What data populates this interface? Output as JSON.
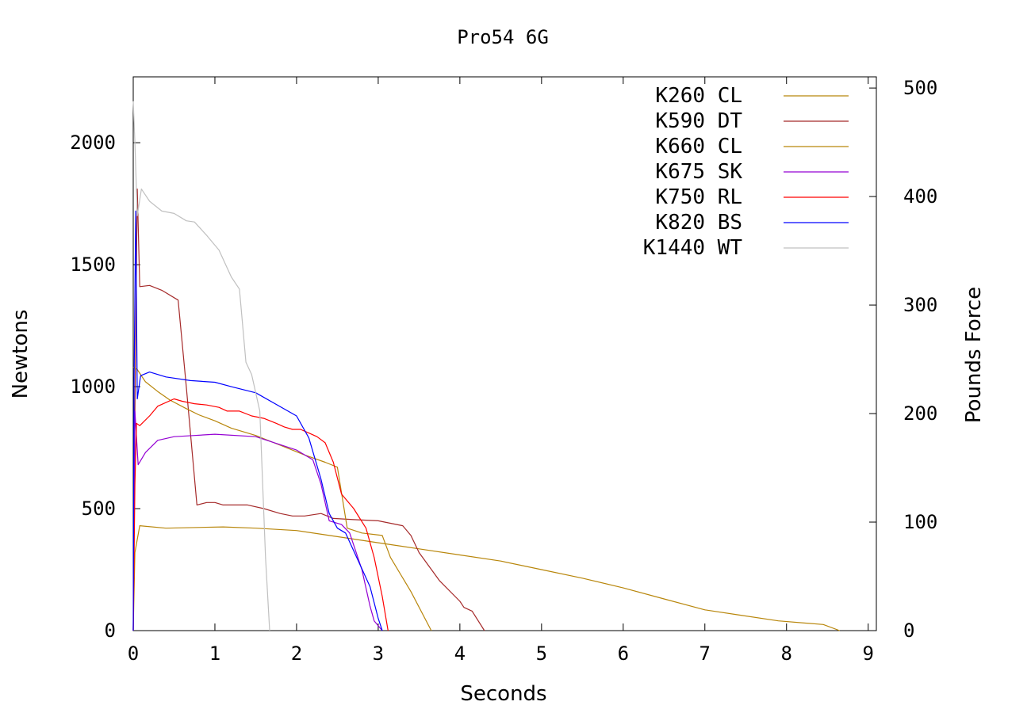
{
  "chart_data": {
    "type": "line",
    "title": "Pro54 6G",
    "xlabel": "Seconds",
    "ylabel": "Newtons",
    "y2label": "Pounds Force",
    "xlim": [
      0,
      9.1
    ],
    "ylim": [
      0,
      2270
    ],
    "y2lim": [
      0,
      510.3
    ],
    "xticks": [
      "0",
      "1",
      "2",
      "3",
      "4",
      "5",
      "6",
      "7",
      "8",
      "9"
    ],
    "yticks": [
      "0",
      "500",
      "1000",
      "1500",
      "2000"
    ],
    "y2ticks": [
      "0",
      "100",
      "200",
      "300",
      "400",
      "500"
    ],
    "grid": false,
    "legend_position": "top-right",
    "series": [
      {
        "name": "K260 CL",
        "color": "#b8860b",
        "points": [
          [
            0,
            0
          ],
          [
            0.02,
            320
          ],
          [
            0.08,
            430
          ],
          [
            0.4,
            420
          ],
          [
            1.1,
            425
          ],
          [
            1.5,
            420
          ],
          [
            2.0,
            410
          ],
          [
            2.5,
            385
          ],
          [
            3.0,
            360
          ],
          [
            3.5,
            335
          ],
          [
            4.0,
            310
          ],
          [
            4.5,
            285
          ],
          [
            5.0,
            250
          ],
          [
            5.5,
            215
          ],
          [
            6.0,
            175
          ],
          [
            6.5,
            130
          ],
          [
            7.0,
            85
          ],
          [
            7.4,
            65
          ],
          [
            7.9,
            40
          ],
          [
            8.45,
            25
          ],
          [
            8.65,
            0
          ]
        ]
      },
      {
        "name": "K590 DT",
        "color": "#a52a2a",
        "points": [
          [
            0,
            0
          ],
          [
            0.02,
            900
          ],
          [
            0.05,
            1810
          ],
          [
            0.08,
            1410
          ],
          [
            0.2,
            1415
          ],
          [
            0.35,
            1395
          ],
          [
            0.55,
            1355
          ],
          [
            0.65,
            1000
          ],
          [
            0.78,
            515
          ],
          [
            0.9,
            525
          ],
          [
            1.0,
            525
          ],
          [
            1.1,
            515
          ],
          [
            1.4,
            515
          ],
          [
            1.6,
            500
          ],
          [
            1.8,
            480
          ],
          [
            1.95,
            470
          ],
          [
            2.1,
            470
          ],
          [
            2.3,
            480
          ],
          [
            2.45,
            460
          ],
          [
            2.7,
            455
          ],
          [
            3.0,
            450
          ],
          [
            3.3,
            430
          ],
          [
            3.4,
            390
          ],
          [
            3.5,
            320
          ],
          [
            3.75,
            205
          ],
          [
            4.0,
            120
          ],
          [
            4.05,
            95
          ],
          [
            4.15,
            80
          ],
          [
            4.3,
            0
          ]
        ]
      },
      {
        "name": "K660 CL",
        "color": "#b8860b",
        "points": [
          [
            0.0,
            1080
          ],
          [
            0.05,
            1070
          ],
          [
            0.15,
            1020
          ],
          [
            0.3,
            980
          ],
          [
            0.45,
            945
          ],
          [
            0.65,
            910
          ],
          [
            0.8,
            885
          ],
          [
            1.0,
            860
          ],
          [
            1.2,
            830
          ],
          [
            1.5,
            800
          ],
          [
            1.8,
            760
          ],
          [
            2.1,
            720
          ],
          [
            2.35,
            690
          ],
          [
            2.5,
            670
          ],
          [
            2.62,
            420
          ],
          [
            2.8,
            400
          ],
          [
            3.05,
            390
          ],
          [
            3.15,
            300
          ],
          [
            3.4,
            160
          ],
          [
            3.65,
            0
          ]
        ]
      },
      {
        "name": "K675 SK",
        "color": "#9400d3",
        "points": [
          [
            0,
            0
          ],
          [
            0.02,
            900
          ],
          [
            0.06,
            680
          ],
          [
            0.15,
            730
          ],
          [
            0.3,
            780
          ],
          [
            0.5,
            795
          ],
          [
            0.75,
            800
          ],
          [
            1.0,
            805
          ],
          [
            1.5,
            795
          ],
          [
            2.0,
            740
          ],
          [
            2.2,
            700
          ],
          [
            2.3,
            600
          ],
          [
            2.4,
            450
          ],
          [
            2.55,
            435
          ],
          [
            2.65,
            400
          ],
          [
            2.8,
            250
          ],
          [
            2.9,
            100
          ],
          [
            2.95,
            40
          ],
          [
            3.05,
            0
          ]
        ]
      },
      {
        "name": "K750 RL",
        "color": "#ff0000",
        "points": [
          [
            0,
            0
          ],
          [
            0.02,
            600
          ],
          [
            0.04,
            850
          ],
          [
            0.08,
            840
          ],
          [
            0.2,
            880
          ],
          [
            0.3,
            920
          ],
          [
            0.5,
            950
          ],
          [
            0.6,
            940
          ],
          [
            0.75,
            930
          ],
          [
            0.9,
            925
          ],
          [
            1.05,
            915
          ],
          [
            1.15,
            900
          ],
          [
            1.3,
            900
          ],
          [
            1.45,
            880
          ],
          [
            1.6,
            870
          ],
          [
            1.75,
            850
          ],
          [
            1.85,
            835
          ],
          [
            1.95,
            825
          ],
          [
            2.05,
            825
          ],
          [
            2.15,
            810
          ],
          [
            2.25,
            795
          ],
          [
            2.35,
            770
          ],
          [
            2.45,
            690
          ],
          [
            2.55,
            560
          ],
          [
            2.7,
            500
          ],
          [
            2.85,
            420
          ],
          [
            2.95,
            300
          ],
          [
            3.05,
            140
          ],
          [
            3.12,
            0
          ]
        ]
      },
      {
        "name": "K820 BS",
        "color": "#0000ff",
        "points": [
          [
            0,
            0
          ],
          [
            0.01,
            1000
          ],
          [
            0.03,
            1720
          ],
          [
            0.05,
            950
          ],
          [
            0.09,
            1045
          ],
          [
            0.2,
            1060
          ],
          [
            0.4,
            1040
          ],
          [
            0.7,
            1025
          ],
          [
            1.0,
            1018
          ],
          [
            1.2,
            1000
          ],
          [
            1.5,
            975
          ],
          [
            2.0,
            880
          ],
          [
            2.15,
            790
          ],
          [
            2.3,
            620
          ],
          [
            2.4,
            480
          ],
          [
            2.5,
            420
          ],
          [
            2.6,
            400
          ],
          [
            2.75,
            290
          ],
          [
            2.9,
            180
          ],
          [
            3.0,
            50
          ],
          [
            3.05,
            0
          ]
        ]
      },
      {
        "name": "K1440 WT",
        "color": "#c0c0c0",
        "points": [
          [
            0,
            2170
          ],
          [
            0.02,
            2000
          ],
          [
            0.05,
            1700
          ],
          [
            0.1,
            1810
          ],
          [
            0.2,
            1760
          ],
          [
            0.35,
            1720
          ],
          [
            0.5,
            1710
          ],
          [
            0.65,
            1680
          ],
          [
            0.75,
            1675
          ],
          [
            0.9,
            1620
          ],
          [
            1.05,
            1560
          ],
          [
            1.2,
            1450
          ],
          [
            1.3,
            1400
          ],
          [
            1.38,
            1100
          ],
          [
            1.45,
            1050
          ],
          [
            1.55,
            900
          ],
          [
            1.62,
            300
          ],
          [
            1.67,
            0
          ]
        ]
      }
    ]
  }
}
